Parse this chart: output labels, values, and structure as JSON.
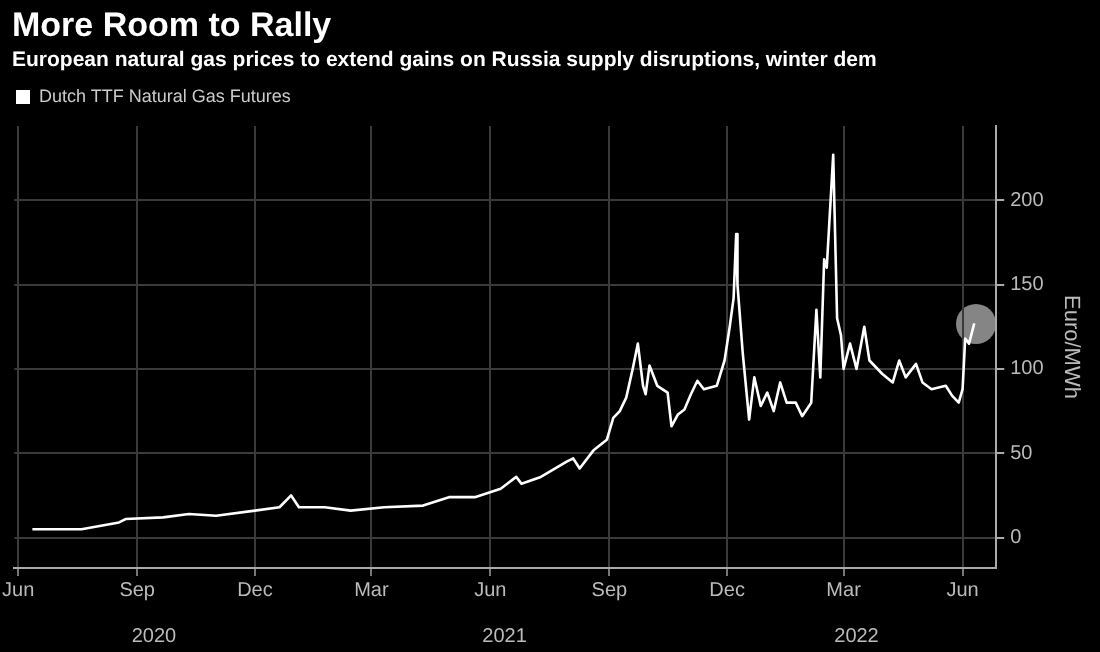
{
  "chart_data": {
    "type": "line",
    "title": "More Room to Rally",
    "subtitle": "European natural gas prices to extend gains on Russia supply disruptions, winter dem",
    "ylabel": "Euro/MWh",
    "x": [
      "2020-06-26",
      "2020-08-03",
      "2020-09-01",
      "2020-09-06",
      "2020-10-05",
      "2020-10-25",
      "2020-11-15",
      "2020-12-15",
      "2021-01-03",
      "2021-01-12",
      "2021-01-18",
      "2021-02-07",
      "2021-02-27",
      "2021-03-25",
      "2021-04-24",
      "2021-05-14",
      "2021-06-03",
      "2021-06-23",
      "2021-07-05",
      "2021-07-09",
      "2021-07-24",
      "2021-08-13",
      "2021-08-18",
      "2021-08-23",
      "2021-09-03",
      "2021-09-13",
      "2021-09-18",
      "2021-09-23",
      "2021-09-28",
      "2021-10-03",
      "2021-10-07",
      "2021-10-11",
      "2021-10-13",
      "2021-10-16",
      "2021-10-22",
      "2021-10-30",
      "2021-11-02",
      "2021-11-07",
      "2021-11-12",
      "2021-11-17",
      "2021-11-22",
      "2021-11-27",
      "2021-12-07",
      "2021-12-13",
      "2021-12-17",
      "2021-12-20",
      "2021-12-22",
      "2021-12-23",
      "2021-12-27",
      "2022-01-01",
      "2022-01-05",
      "2022-01-10",
      "2022-01-15",
      "2022-01-20",
      "2022-01-25",
      "2022-01-30",
      "2022-02-06",
      "2022-02-11",
      "2022-02-18",
      "2022-02-22",
      "2022-02-25",
      "2022-02-28",
      "2022-03-02",
      "2022-03-07",
      "2022-03-10",
      "2022-03-13",
      "2022-03-15",
      "2022-03-20",
      "2022-03-25",
      "2022-03-31",
      "2022-04-04",
      "2022-04-14",
      "2022-04-22",
      "2022-04-27",
      "2022-05-02",
      "2022-05-10",
      "2022-05-15",
      "2022-05-22",
      "2022-06-02",
      "2022-06-07",
      "2022-06-12",
      "2022-06-15",
      "2022-06-17",
      "2022-06-20",
      "2022-06-24"
    ],
    "series": [
      {
        "name": "Dutch TTF Natural Gas Futures",
        "color": "#ffffff",
        "values": [
          5,
          5,
          9,
          11,
          12,
          14,
          13,
          16,
          18,
          25,
          18,
          18,
          16,
          18,
          19,
          24,
          24,
          29,
          36,
          32,
          36,
          45,
          47,
          41,
          52,
          58,
          71,
          75,
          83,
          100,
          115,
          90,
          85,
          102,
          90,
          86,
          66,
          73,
          76,
          85,
          93,
          88,
          90,
          105,
          125,
          142,
          180,
          150,
          110,
          70,
          95,
          78,
          86,
          75,
          92,
          80,
          80,
          72,
          80,
          135,
          95,
          165,
          160,
          227,
          130,
          120,
          100,
          115,
          100,
          125,
          105,
          97,
          92,
          105,
          95,
          103,
          92,
          88,
          90,
          84,
          80,
          88,
          118,
          115,
          127
        ]
      }
    ],
    "xlim": [
      "2020-06-12",
      "2022-07-11"
    ],
    "xticks": [
      {
        "value": "2020-06-15",
        "label": "Jun"
      },
      {
        "value": "2020-09-15",
        "label": "Sep"
      },
      {
        "value": "2020-12-15",
        "label": "Dec"
      },
      {
        "value": "2021-03-15",
        "label": "Mar"
      },
      {
        "value": "2021-06-15",
        "label": "Jun"
      },
      {
        "value": "2021-09-15",
        "label": "Sep"
      },
      {
        "value": "2021-12-15",
        "label": "Dec"
      },
      {
        "value": "2022-03-15",
        "label": "Mar"
      },
      {
        "value": "2022-06-15",
        "label": "Jun"
      }
    ],
    "x2lim": [
      "2020-06-12",
      "2022-07-11"
    ],
    "x2ticks": [
      {
        "value": "2020-09-28",
        "label": "2020"
      },
      {
        "value": "2021-06-26",
        "label": "2021"
      },
      {
        "value": "2022-03-25",
        "label": "2022"
      }
    ],
    "ylim": [
      -18,
      244
    ],
    "yticks": [
      0,
      50,
      100,
      150,
      200
    ],
    "grid": true,
    "legend": "top left"
  }
}
